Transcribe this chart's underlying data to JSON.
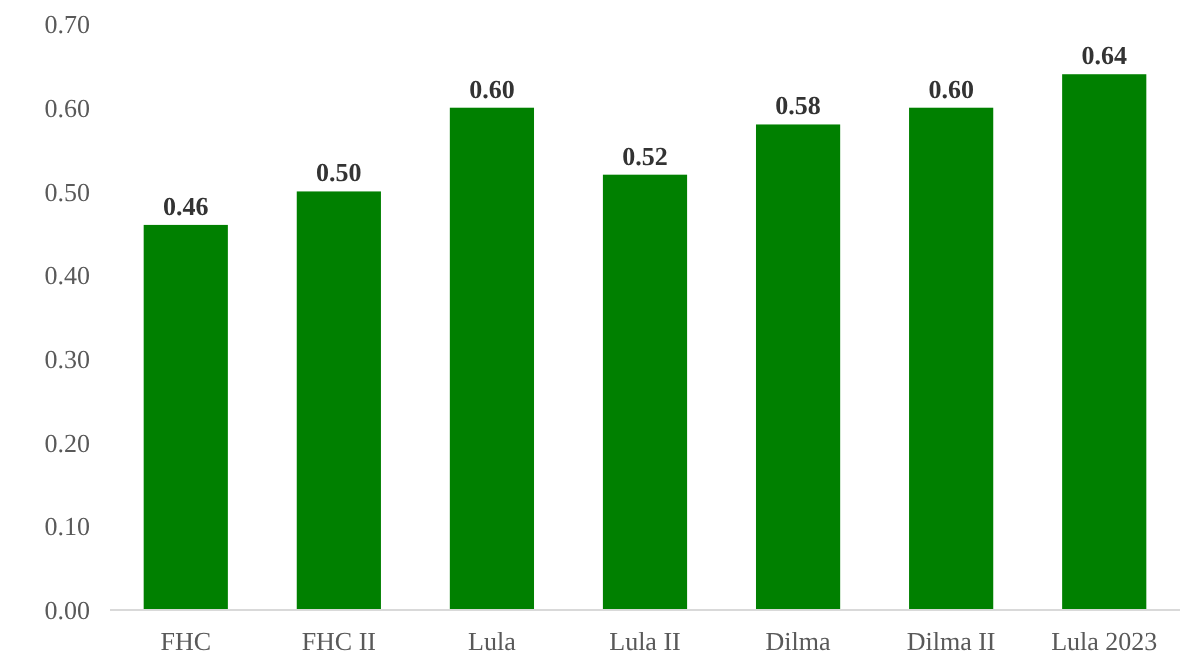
{
  "chart_data": {
    "type": "bar",
    "categories": [
      "FHC",
      "FHC II",
      "Lula",
      "Lula II",
      "Dilma",
      "Dilma II",
      "Lula 2023"
    ],
    "values": [
      0.46,
      0.5,
      0.6,
      0.52,
      0.58,
      0.6,
      0.64
    ],
    "value_labels": [
      "0.46",
      "0.50",
      "0.60",
      "0.52",
      "0.58",
      "0.60",
      "0.64"
    ],
    "color": "#008000",
    "ylim": [
      0,
      0.7
    ],
    "yticks": [
      {
        "value": 0,
        "label": "0.00"
      },
      {
        "value": 0.1,
        "label": "0.10"
      },
      {
        "value": 0.2,
        "label": "0.20"
      },
      {
        "value": 0.3,
        "label": "0.30"
      },
      {
        "value": 0.4,
        "label": "0.40"
      },
      {
        "value": 0.5,
        "label": "0.50"
      },
      {
        "value": 0.6,
        "label": "0.60"
      },
      {
        "value": 0.7,
        "label": "0.70"
      }
    ],
    "grid": false
  }
}
